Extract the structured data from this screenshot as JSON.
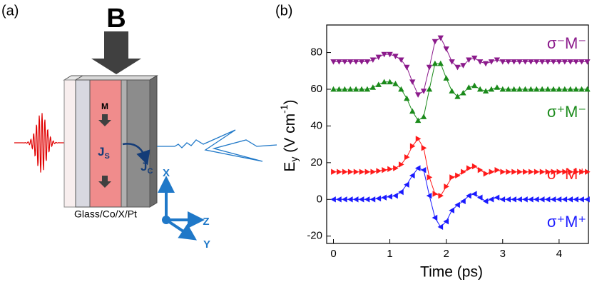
{
  "diagram": {
    "panel_label": "(a)",
    "field_label": "B",
    "magnetization_label": "M",
    "spin_current": {
      "main": "J",
      "sub": "S"
    },
    "charge_current": {
      "main": "J",
      "sub": "C"
    },
    "axes": {
      "x": "X",
      "y": "Y",
      "z": "Z"
    },
    "stack_label": "Glass/Co/X/Pt"
  },
  "chart_data": {
    "type": "line",
    "panel_label": "(b)",
    "x_label": "Time (ps)",
    "y_label": {
      "main": "E",
      "sub": "y",
      "unit": " (V cm",
      "sup": "-1",
      "close": ")"
    },
    "x": [
      0,
      0.1,
      0.2,
      0.3,
      0.4,
      0.5,
      0.6,
      0.7,
      0.8,
      0.9,
      1.0,
      1.1,
      1.2,
      1.3,
      1.4,
      1.5,
      1.6,
      1.7,
      1.8,
      1.9,
      2.0,
      2.1,
      2.2,
      2.3,
      2.4,
      2.5,
      2.6,
      2.7,
      2.8,
      2.9,
      3.0,
      3.1,
      3.2,
      3.3,
      3.4,
      3.5,
      3.6,
      3.7,
      3.8,
      3.9,
      4.0,
      4.1,
      4.2,
      4.3,
      4.4,
      4.5
    ],
    "series": [
      {
        "name": "σ⁻M⁻",
        "color": "#8b1a8b",
        "marker": "down",
        "values": [
          75,
          75,
          75,
          75,
          75,
          75,
          75,
          76,
          77.5,
          79,
          79,
          78,
          76,
          72,
          64,
          57,
          59,
          72,
          86,
          88,
          82,
          75,
          72,
          73,
          76,
          77,
          75,
          74,
          75,
          76,
          75,
          75,
          75,
          75,
          75,
          75,
          75,
          75,
          75,
          75,
          75,
          75,
          75,
          75,
          75,
          75
        ]
      },
      {
        "name": "σ⁺M⁻",
        "color": "#1a8a1a",
        "marker": "up",
        "values": [
          60,
          60,
          60,
          60,
          60,
          60,
          60,
          61,
          62.5,
          64,
          64,
          63,
          60,
          55,
          48,
          43,
          45,
          60,
          74,
          74,
          66,
          59,
          56,
          58,
          61,
          62,
          60,
          59,
          60,
          61,
          60,
          60,
          60,
          60,
          60,
          60,
          60,
          60,
          60,
          60,
          60,
          60,
          60,
          60,
          60,
          60
        ]
      },
      {
        "name": "σ⁻M⁺",
        "color": "#ff1a1a",
        "marker": "right",
        "values": [
          15,
          15,
          15,
          15,
          15,
          15,
          15,
          15,
          15.5,
          16,
          16.5,
          17,
          19,
          23,
          29,
          33,
          28,
          12,
          3,
          2,
          7,
          12,
          13,
          15,
          17,
          18,
          16,
          14,
          15,
          16,
          15,
          15,
          15,
          15,
          15,
          15,
          15,
          15,
          15,
          15,
          15,
          15,
          15,
          15,
          15,
          15
        ]
      },
      {
        "name": "σ⁺M⁺",
        "color": "#1a1aff",
        "marker": "left",
        "values": [
          0,
          0,
          0,
          0,
          0,
          0,
          0,
          0,
          0.5,
          1,
          1.5,
          2,
          4,
          8,
          13,
          17,
          16,
          2,
          -10,
          -15,
          -12,
          -6,
          -3,
          -1,
          2,
          3,
          1,
          -1,
          0,
          1,
          0,
          0,
          0,
          0,
          0,
          0,
          0,
          0,
          0,
          0,
          0,
          0,
          0,
          0,
          0,
          0
        ]
      }
    ],
    "xlim": [
      -0.12,
      4.52
    ],
    "xticks": [
      0,
      1,
      2,
      3,
      4
    ],
    "ylim": [
      -24,
      95
    ],
    "yticks": [
      -20,
      0,
      20,
      40,
      60,
      80
    ]
  }
}
